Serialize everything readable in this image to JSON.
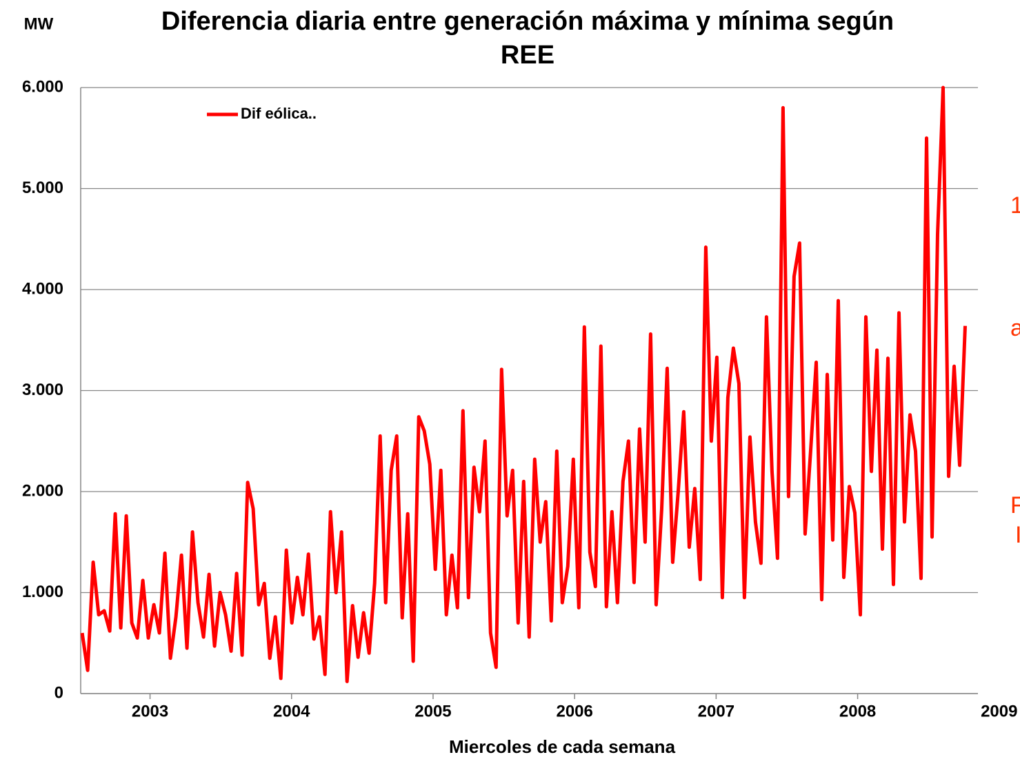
{
  "chart_data": {
    "type": "line",
    "title": [
      "Diferencia diaria entre generación máxima y mínima según",
      "REE"
    ],
    "y_axis_label": "MW",
    "x_axis_label": "Miercoles de cada semana",
    "annotations": [
      "1",
      "a",
      "F",
      "I"
    ],
    "legend": "top-left",
    "grid": true,
    "xlim": [
      2002.51,
      2008.85
    ],
    "xticks": [
      2003,
      2004,
      2005,
      2006,
      2007,
      2008,
      2009
    ],
    "ylim": [
      0,
      6000
    ],
    "yticks": [
      0,
      {
        "value": 1000,
        "label": "1.000"
      },
      {
        "value": 2000,
        "label": "2.000"
      },
      {
        "value": 3000,
        "label": "3.000"
      },
      {
        "value": 4000,
        "label": "4.000"
      },
      {
        "value": 5000,
        "label": "5.000"
      },
      {
        "value": 6000,
        "label": "6.000"
      }
    ],
    "x": [
      2002.52,
      2002.559,
      2002.598,
      2002.637,
      2002.676,
      2002.715,
      2002.754,
      2002.793,
      2002.832,
      2002.871,
      2002.91,
      2002.949,
      2002.988,
      2003.027,
      2003.066,
      2003.105,
      2003.144,
      2003.183,
      2003.222,
      2003.261,
      2003.3,
      2003.339,
      2003.378,
      2003.417,
      2003.456,
      2003.495,
      2003.534,
      2003.573,
      2003.612,
      2003.651,
      2003.69,
      2003.729,
      2003.768,
      2003.807,
      2003.846,
      2003.885,
      2003.924,
      2003.963,
      2004.002,
      2004.041,
      2004.08,
      2004.119,
      2004.158,
      2004.197,
      2004.236,
      2004.275,
      2004.314,
      2004.353,
      2004.392,
      2004.431,
      2004.47,
      2004.509,
      2004.548,
      2004.587,
      2004.626,
      2004.665,
      2004.704,
      2004.743,
      2004.782,
      2004.821,
      2004.86,
      2004.899,
      2004.938,
      2004.977,
      2005.016,
      2005.055,
      2005.094,
      2005.133,
      2005.172,
      2005.211,
      2005.25,
      2005.289,
      2005.328,
      2005.367,
      2005.406,
      2005.445,
      2005.484,
      2005.523,
      2005.562,
      2005.601,
      2005.64,
      2005.679,
      2005.718,
      2005.757,
      2005.796,
      2005.835,
      2005.874,
      2005.913,
      2005.952,
      2005.991,
      2006.03,
      2006.069,
      2006.108,
      2006.147,
      2006.186,
      2006.225,
      2006.264,
      2006.303,
      2006.342,
      2006.381,
      2006.42,
      2006.459,
      2006.498,
      2006.537,
      2006.576,
      2006.615,
      2006.654,
      2006.693,
      2006.732,
      2006.771,
      2006.81,
      2006.849,
      2006.888,
      2006.927,
      2006.966,
      2007.005,
      2007.044,
      2007.083,
      2007.122,
      2007.161,
      2007.2,
      2007.239,
      2007.278,
      2007.317,
      2007.356,
      2007.395,
      2007.434,
      2007.473,
      2007.512,
      2007.551,
      2007.59,
      2007.629,
      2007.668,
      2007.707,
      2007.746,
      2007.785,
      2007.824,
      2007.863,
      2007.902,
      2007.941,
      2007.98,
      2008.019,
      2008.058,
      2008.097,
      2008.136,
      2008.175,
      2008.214,
      2008.253,
      2008.292,
      2008.331,
      2008.37,
      2008.409,
      2008.448,
      2008.487,
      2008.526,
      2008.565,
      2008.604,
      2008.643,
      2008.682,
      2008.721,
      2008.76
    ],
    "series": [
      {
        "name": "Dif eólica..",
        "color": "#ff0000",
        "values": [
          600,
          230,
          1300,
          780,
          820,
          620,
          1780,
          650,
          1760,
          700,
          550,
          1120,
          550,
          880,
          600,
          1390,
          350,
          760,
          1370,
          450,
          1600,
          900,
          560,
          1180,
          470,
          1000,
          780,
          420,
          1190,
          380,
          2090,
          1830,
          880,
          1090,
          350,
          760,
          150,
          1420,
          700,
          1150,
          780,
          1380,
          540,
          760,
          190,
          1800,
          1000,
          1600,
          120,
          870,
          360,
          800,
          400,
          1090,
          2550,
          900,
          2210,
          2550,
          750,
          1780,
          320,
          2740,
          2600,
          2270,
          1230,
          2210,
          780,
          1370,
          850,
          2800,
          950,
          2240,
          1800,
          2500,
          600,
          260,
          3210,
          1760,
          2210,
          700,
          2100,
          560,
          2320,
          1500,
          1900,
          720,
          2400,
          900,
          1260,
          2320,
          850,
          3630,
          1400,
          1060,
          3440,
          860,
          1800,
          900,
          2100,
          2500,
          1100,
          2620,
          1500,
          3560,
          880,
          1820,
          3220,
          1300,
          2000,
          2790,
          1450,
          2030,
          1130,
          4420,
          2500,
          3330,
          950,
          2930,
          3420,
          3070,
          950,
          2540,
          1700,
          1290,
          3730,
          2200,
          1340,
          5800,
          1950,
          4130,
          4460,
          1580,
          2400,
          3280,
          930,
          3160,
          1520,
          3890,
          1150,
          2050,
          1790,
          780,
          3730,
          2200,
          3400,
          1430,
          3320,
          1080,
          3770,
          1700,
          2760,
          2400,
          1140,
          5500,
          1550,
          4550,
          6000,
          2150,
          3240,
          2260,
          3640
        ]
      }
    ]
  }
}
